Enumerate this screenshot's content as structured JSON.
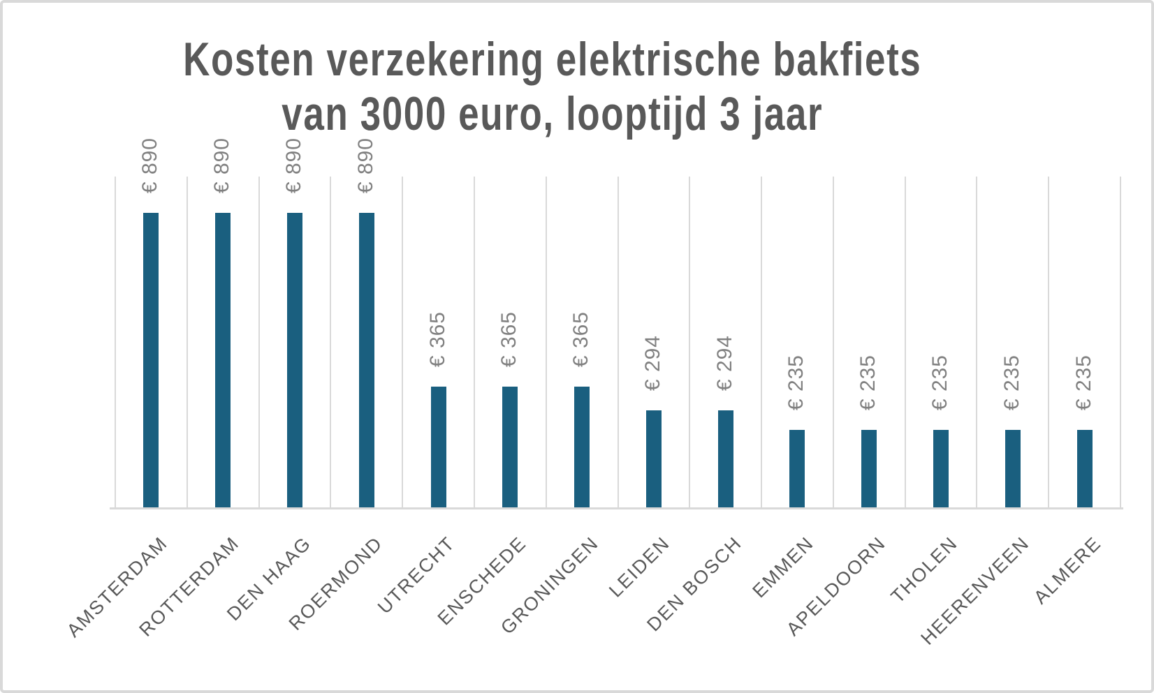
{
  "chart_data": {
    "type": "bar",
    "title": "Kosten verzekering elektrische bakfiets van 3000 euro, looptijd 3 jaar",
    "title_lines": [
      "Kosten verzekering elektrische bakfiets",
      "van 3000 euro, looptijd 3 jaar"
    ],
    "categories": [
      "AMSTERDAM",
      "ROTTERDAM",
      "DEN HAAG",
      "ROERMOND",
      "UTRECHT",
      "ENSCHEDE",
      "GRONINGEN",
      "LEIDEN",
      "DEN BOSCH",
      "EMMEN",
      "APELDOORN",
      "THOLEN",
      "HEERENVEEN",
      "ALMERE"
    ],
    "values": [
      890,
      890,
      890,
      890,
      365,
      365,
      365,
      294,
      294,
      235,
      235,
      235,
      235,
      235
    ],
    "value_labels": [
      "€ 890",
      "€ 890",
      "€ 890",
      "€ 890",
      "€ 365",
      "€ 365",
      "€ 365",
      "€ 294",
      "€ 294",
      "€ 235",
      "€ 235",
      "€ 235",
      "€ 235",
      "€ 235"
    ],
    "xlabel": "",
    "ylabel": "",
    "ylim": [
      0,
      1000
    ],
    "grid": "vertical-category-boundaries",
    "legend": "none",
    "value_label_rotation_deg": -90,
    "category_label_rotation_deg": -45,
    "colors": {
      "bar": "#1a5f7f",
      "gridline": "#d9d9d9",
      "axis_line": "#d9d9d9",
      "title_text": "#595959",
      "value_label_text": "#808080",
      "category_label_text": "#595959",
      "background": "#ffffff",
      "border": "#d9d9d9"
    }
  }
}
